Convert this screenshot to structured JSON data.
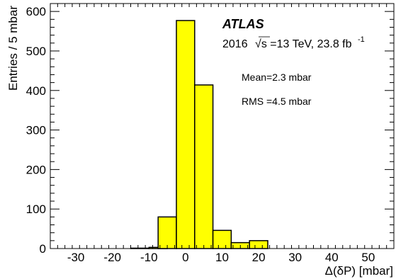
{
  "chart_data": {
    "type": "bar",
    "bin_width": 5,
    "bins": [
      {
        "low": -15,
        "high": -10,
        "value": 1
      },
      {
        "low": -10,
        "high": -5,
        "value": 3
      },
      {
        "low": -7.5,
        "high": -2.5,
        "value": 80
      },
      {
        "low": -2.5,
        "high": 2.5,
        "value": 577
      },
      {
        "low": 2.5,
        "high": 7.5,
        "value": 414
      },
      {
        "low": 7.5,
        "high": 12.5,
        "value": 46
      },
      {
        "low": 12.5,
        "high": 17.5,
        "value": 15
      },
      {
        "low": 17.5,
        "high": 22.5,
        "value": 20
      }
    ],
    "xlim": [
      -37,
      57
    ],
    "ylim": [
      0,
      620
    ],
    "xticks": [
      -30,
      -20,
      -10,
      0,
      10,
      20,
      30,
      40,
      50
    ],
    "yticks": [
      0,
      100,
      200,
      300,
      400,
      500,
      600
    ],
    "xlabel": "Δ(δP) [mbar]",
    "ylabel": "Entries / 5 mbar",
    "fill_color": "#ffff00",
    "line_color": "#000000",
    "grid": false,
    "annotations": {
      "experiment": "ATLAS",
      "dataset_prefix": "2016",
      "sqrt_symbol": "√s",
      "dataset_energy": "=13 TeV, 23.8 fb",
      "dataset_exponent": "-1",
      "mean": "Mean=2.3 mbar",
      "rms": "RMS =4.5 mbar"
    }
  }
}
